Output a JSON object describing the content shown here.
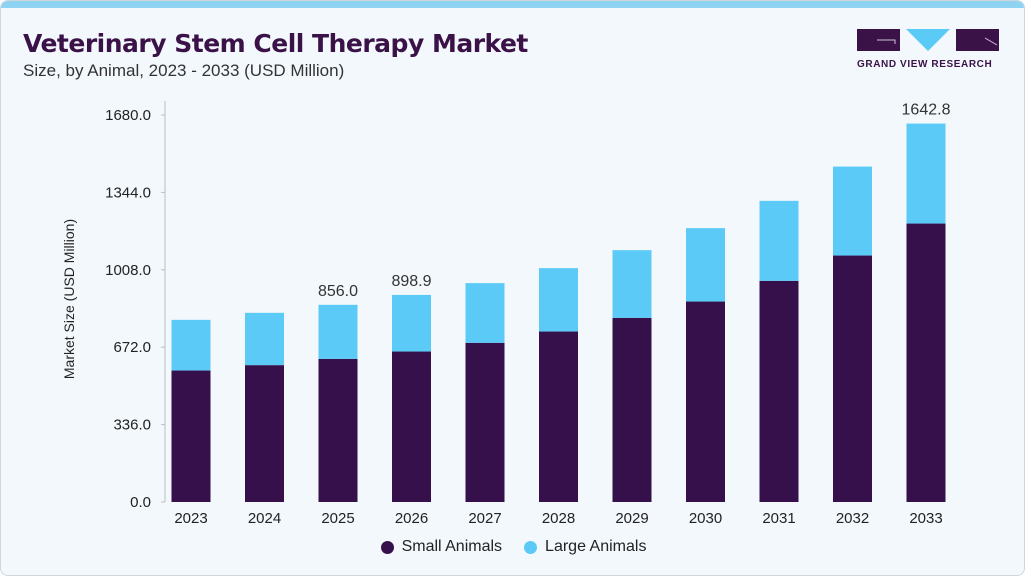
{
  "header": {
    "title": "Veterinary Stem Cell Therapy Market",
    "subtitle": "Size, by Animal, 2023 - 2033 (USD Million)"
  },
  "logo": {
    "text": "GRAND VIEW RESEARCH"
  },
  "chart_data": {
    "type": "bar",
    "stacked": true,
    "title": "Veterinary Stem Cell Therapy Market",
    "subtitle": "Size, by Animal, 2023 - 2033 (USD Million)",
    "xlabel": "",
    "ylabel": "Market Size (USD Million)",
    "ylim": [
      0,
      1680
    ],
    "yticks": [
      "0.0",
      "336.0",
      "672.0",
      "1008.0",
      "1344.0",
      "1680.0"
    ],
    "categories": [
      "2023",
      "2024",
      "2025",
      "2026",
      "2027",
      "2028",
      "2029",
      "2030",
      "2031",
      "2032",
      "2033"
    ],
    "series": [
      {
        "name": "Small Animals",
        "color": "#36104a",
        "values": [
          570.7,
          594.2,
          621.5,
          653.2,
          691.0,
          740.0,
          799.5,
          870.2,
          960.1,
          1069.9,
          1208.8
        ]
      },
      {
        "name": "Large Animals",
        "color": "#5ccaf6",
        "values": [
          220.1,
          227.0,
          234.5,
          245.7,
          259.1,
          275.2,
          293.8,
          318.6,
          347.2,
          386.3,
          434.0
        ]
      }
    ],
    "data_labels": {
      "2025": "856.0",
      "2026": "898.9",
      "2033": "1642.8"
    },
    "grid": false,
    "legend_position": "bottom"
  }
}
